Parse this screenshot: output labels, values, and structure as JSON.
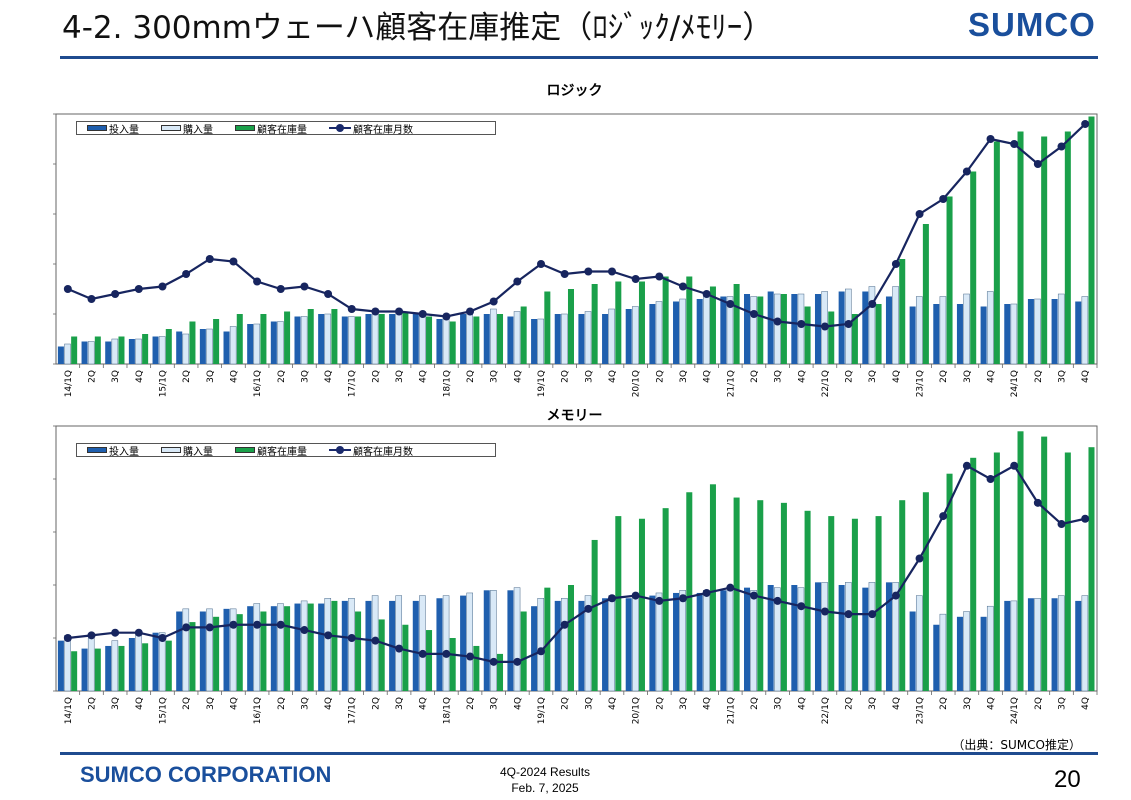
{
  "header": {
    "title": "4-2. 300mmウェーハ顧客在庫推定（ﾛｼﾞｯｸ/ﾒﾓﾘｰ）",
    "logo": "SUMCO"
  },
  "legend": {
    "input": "投入量",
    "purchase": "購入量",
    "inventory": "顧客在庫量",
    "months": "顧客在庫月数"
  },
  "colors": {
    "input": "#1f5fae",
    "purchase": "#d9e9f7",
    "inventory": "#1aa04a",
    "months": "#17255f"
  },
  "chart_data": [
    {
      "type": "bar",
      "title": "ロジック",
      "categories": [
        "14/1Q",
        "2Q",
        "3Q",
        "4Q",
        "15/1Q",
        "2Q",
        "3Q",
        "4Q",
        "16/1Q",
        "2Q",
        "3Q",
        "4Q",
        "17/1Q",
        "2Q",
        "3Q",
        "4Q",
        "18/1Q",
        "2Q",
        "3Q",
        "4Q",
        "19/1Q",
        "2Q",
        "3Q",
        "4Q",
        "20/1Q",
        "2Q",
        "3Q",
        "4Q",
        "21/1Q",
        "2Q",
        "3Q",
        "4Q",
        "22/1Q",
        "2Q",
        "3Q",
        "4Q",
        "23/1Q",
        "2Q",
        "3Q",
        "4Q",
        "24/1Q",
        "2Q",
        "3Q",
        "4Q"
      ],
      "ylim": [
        0,
        100
      ],
      "series": [
        {
          "name": "投入量",
          "values": [
            7,
            9,
            9,
            10,
            11,
            13,
            14,
            13,
            16,
            17,
            19,
            20,
            19,
            20,
            20,
            20,
            18,
            20,
            20,
            19,
            18,
            20,
            20,
            20,
            22,
            24,
            25,
            26,
            27,
            28,
            29,
            28,
            28,
            29,
            29,
            27,
            23,
            24,
            24,
            23,
            24,
            26,
            26,
            25
          ]
        },
        {
          "name": "購入量",
          "values": [
            8,
            9,
            10,
            10,
            11,
            12,
            14,
            15,
            16,
            17,
            19,
            20,
            19,
            20,
            21,
            20,
            19,
            21,
            22,
            21,
            18,
            20,
            21,
            22,
            23,
            25,
            26,
            27,
            27,
            27,
            28,
            28,
            29,
            30,
            31,
            31,
            27,
            27,
            28,
            29,
            24,
            26,
            28,
            27
          ]
        },
        {
          "name": "顧客在庫量",
          "values": [
            11,
            11,
            11,
            12,
            14,
            17,
            18,
            20,
            20,
            21,
            22,
            22,
            19,
            20,
            21,
            19,
            17,
            19,
            20,
            23,
            29,
            30,
            32,
            33,
            33,
            35,
            35,
            31,
            32,
            27,
            28,
            23,
            21,
            20,
            24,
            42,
            56,
            67,
            77,
            89,
            93,
            91,
            93,
            99
          ]
        },
        {
          "name": "顧客在庫月数",
          "values": [
            30,
            26,
            28,
            30,
            31,
            36,
            42,
            41,
            33,
            30,
            31,
            28,
            22,
            21,
            21,
            20,
            19,
            21,
            25,
            33,
            40,
            36,
            37,
            37,
            34,
            35,
            31,
            28,
            24,
            20,
            17,
            16,
            15,
            16,
            24,
            40,
            60,
            66,
            77,
            90,
            88,
            80,
            87,
            96
          ]
        }
      ]
    },
    {
      "type": "bar",
      "title": "メモリー",
      "categories": [
        "14/1Q",
        "2Q",
        "3Q",
        "4Q",
        "15/1Q",
        "2Q",
        "3Q",
        "4Q",
        "16/1Q",
        "2Q",
        "3Q",
        "4Q",
        "17/1Q",
        "2Q",
        "3Q",
        "4Q",
        "18/1Q",
        "2Q",
        "3Q",
        "4Q",
        "19/1Q",
        "2Q",
        "3Q",
        "4Q",
        "20/1Q",
        "2Q",
        "3Q",
        "4Q",
        "21/1Q",
        "2Q",
        "3Q",
        "4Q",
        "22/1Q",
        "2Q",
        "3Q",
        "4Q",
        "23/1Q",
        "2Q",
        "3Q",
        "4Q",
        "24/1Q",
        "2Q",
        "3Q",
        "4Q"
      ],
      "ylim": [
        0,
        100
      ],
      "series": [
        {
          "name": "投入量",
          "values": [
            19,
            16,
            17,
            20,
            22,
            30,
            30,
            31,
            32,
            32,
            33,
            33,
            34,
            34,
            34,
            34,
            35,
            36,
            38,
            38,
            32,
            34,
            34,
            35,
            35,
            36,
            37,
            37,
            38,
            39,
            40,
            40,
            41,
            40,
            39,
            41,
            30,
            25,
            28,
            28,
            34,
            35,
            35,
            34
          ]
        },
        {
          "name": "購入量",
          "values": [
            21,
            20,
            19,
            21,
            22,
            31,
            31,
            31,
            33,
            33,
            34,
            35,
            35,
            36,
            36,
            36,
            36,
            37,
            38,
            39,
            35,
            35,
            36,
            36,
            36,
            37,
            38,
            38,
            38,
            38,
            39,
            39,
            41,
            41,
            41,
            41,
            36,
            29,
            30,
            32,
            34,
            35,
            36,
            36
          ]
        },
        {
          "name": "顧客在庫量",
          "values": [
            15,
            16,
            17,
            18,
            19,
            26,
            28,
            29,
            30,
            32,
            33,
            34,
            30,
            27,
            25,
            23,
            20,
            17,
            14,
            30,
            39,
            40,
            57,
            66,
            65,
            69,
            75,
            78,
            73,
            72,
            71,
            68,
            66,
            65,
            66,
            72,
            75,
            82,
            88,
            90,
            98,
            96,
            90,
            92
          ]
        },
        {
          "name": "顧客在庫月数",
          "values": [
            20,
            21,
            22,
            22,
            20,
            24,
            24,
            25,
            25,
            25,
            23,
            21,
            20,
            19,
            16,
            14,
            14,
            13,
            11,
            11,
            15,
            25,
            31,
            35,
            36,
            34,
            35,
            37,
            39,
            36,
            34,
            32,
            30,
            29,
            29,
            36,
            50,
            66,
            85,
            80,
            85,
            71,
            63,
            65
          ]
        }
      ]
    }
  ],
  "source": "（出典：SUMCO推定）",
  "footer": {
    "corp": "SUMCO CORPORATION",
    "results": "4Q-2024 Results",
    "date": "Feb. 7, 2025",
    "page": "20"
  }
}
